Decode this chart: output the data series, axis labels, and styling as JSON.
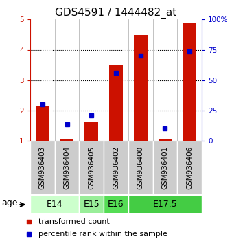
{
  "title": "GDS4591 / 1444482_at",
  "samples": [
    "GSM936403",
    "GSM936404",
    "GSM936405",
    "GSM936402",
    "GSM936400",
    "GSM936401",
    "GSM936406"
  ],
  "transformed_counts": [
    2.15,
    1.05,
    1.65,
    3.52,
    4.48,
    1.08,
    4.9
  ],
  "percentile_ranks_left": [
    2.2,
    1.55,
    1.85,
    3.25,
    3.8,
    1.42,
    3.95
  ],
  "ylim": [
    1,
    5
  ],
  "yticks": [
    1,
    2,
    3,
    4,
    5
  ],
  "y2lim": [
    0,
    100
  ],
  "y2ticks": [
    0,
    25,
    50,
    75,
    100
  ],
  "y2ticklabels": [
    "0",
    "25",
    "50",
    "75",
    "100%"
  ],
  "groups": [
    {
      "label": "E14",
      "indices": [
        0,
        1
      ],
      "color": "#ccffcc"
    },
    {
      "label": "E15",
      "indices": [
        2
      ],
      "color": "#99ee99"
    },
    {
      "label": "E16",
      "indices": [
        3
      ],
      "color": "#55dd55"
    },
    {
      "label": "E17.5",
      "indices": [
        4,
        5,
        6
      ],
      "color": "#44cc44"
    }
  ],
  "bar_color": "#cc1100",
  "percentile_color": "#0000cc",
  "sample_bg_color": "#cccccc",
  "plot_bg": "#ffffff",
  "legend_tc": "transformed count",
  "legend_pr": "percentile rank within the sample",
  "age_label": "age",
  "title_fontsize": 11,
  "tick_fontsize": 7.5,
  "legend_fontsize": 8,
  "group_fontsize": 9,
  "bar_width": 0.55
}
